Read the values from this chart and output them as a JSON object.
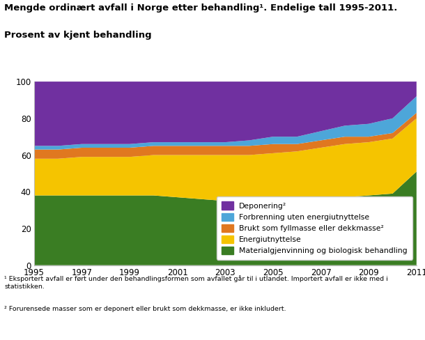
{
  "years": [
    1995,
    1996,
    1997,
    1998,
    1999,
    2000,
    2001,
    2002,
    2003,
    2004,
    2005,
    2006,
    2007,
    2008,
    2009,
    2010,
    2011
  ],
  "mat": [
    38,
    38,
    38,
    38,
    38,
    38,
    37,
    36,
    35,
    34,
    34,
    35,
    36,
    37,
    38,
    39,
    51
  ],
  "ener": [
    20,
    20,
    21,
    21,
    21,
    22,
    23,
    24,
    25,
    26,
    27,
    27,
    28,
    29,
    29,
    30,
    29
  ],
  "fyll": [
    5,
    5,
    5,
    5,
    5,
    5,
    5,
    5,
    5,
    5,
    5,
    4,
    4,
    4,
    3,
    3,
    3
  ],
  "forb": [
    2,
    2,
    2,
    2,
    2,
    2,
    2,
    2,
    2,
    3,
    4,
    4,
    5,
    6,
    7,
    8,
    9
  ],
  "depo": [
    35,
    35,
    34,
    34,
    34,
    33,
    33,
    33,
    33,
    32,
    30,
    30,
    27,
    24,
    23,
    20,
    8
  ],
  "colors": {
    "materialgjenvinning": "#3a7d23",
    "energiutnyttelse": "#f5c400",
    "fyllmasse": "#e07820",
    "forbrenning": "#4da6d9",
    "deponering": "#7030a0"
  },
  "labels": {
    "deponering": "Deponering²",
    "forbrenning": "Forbrenning uten energiutnyttelse",
    "fyllmasse": "Brukt som fyllmasse eller dekkmasse²",
    "energiutnyttelse": "Energiutnyttelse",
    "materialgjenvinning": "Materialgjenvinning og biologisk behandling"
  },
  "title_line1": "Mengde ordinært avfall i Norge etter behandling¹. Endelige tall 1995-2011.",
  "title_line2": "Prosent av kjent behandling",
  "ylim": [
    0,
    100
  ],
  "footnote1": "¹ Eksportert avfall er ført under den behandlingsformen som avfallet går til i utlandet. Importert avfall er ikke med i statistikken.",
  "footnote2": "² Forurensede masser som er deponert eller brukt som dekkmasse, er ikke inkludert.",
  "xticks": [
    1995,
    1997,
    1999,
    2001,
    2003,
    2005,
    2007,
    2009,
    2011
  ],
  "yticks": [
    0,
    20,
    40,
    60,
    80,
    100
  ]
}
